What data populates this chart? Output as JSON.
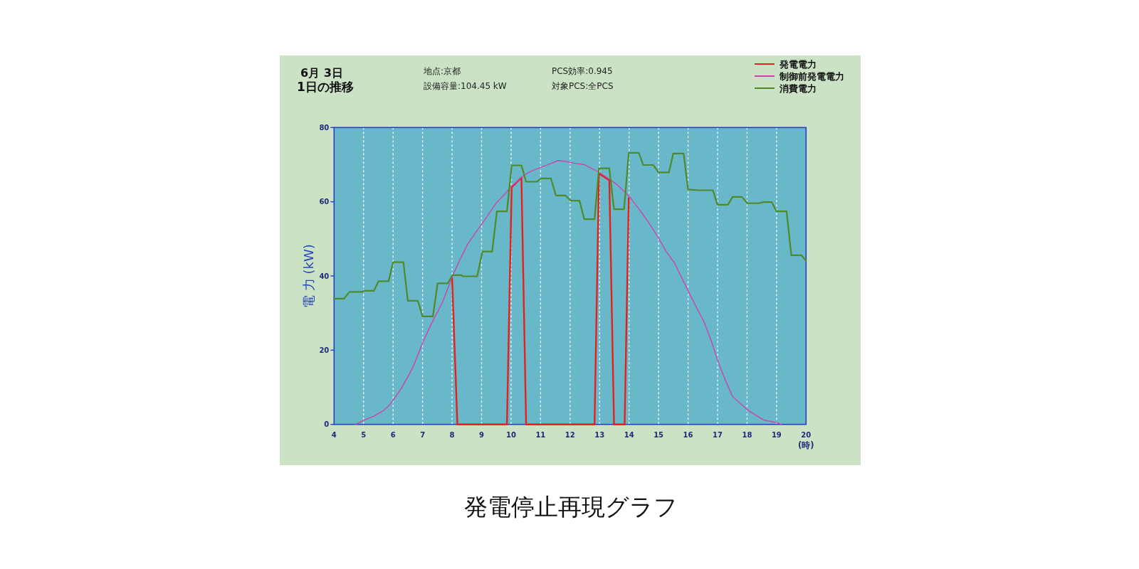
{
  "chart_data": {
    "type": "line",
    "title": "6月 3日",
    "subtitle": "1日の推移",
    "xlabel": "(時)",
    "ylabel": "電 力 (kW)",
    "annotations": [
      "地点:京都",
      "設備容量:104.45 kW",
      "PCS効率:0.945",
      "対象PCS:全PCS",
      "発電停止再現グラフ"
    ],
    "xlim": [
      4,
      20
    ],
    "xticks": [
      4,
      5,
      6,
      7,
      8,
      9,
      10,
      11,
      12,
      13,
      14,
      15,
      16,
      17,
      18,
      19,
      20
    ],
    "ylim": [
      0,
      80
    ],
    "yticks": [
      0,
      20,
      40,
      60,
      80
    ],
    "grid": "x",
    "legend": "top right",
    "line_style": "solid",
    "series": [
      {
        "name": "発電電力",
        "color": "#e3221c",
        "x": [
          8.0,
          8.18,
          9.86,
          10.02,
          10.35,
          10.51,
          12.83,
          12.98,
          13.33,
          13.49,
          13.85,
          13.99
        ],
        "values": [
          39.5,
          0,
          0,
          63.9,
          66.5,
          0,
          0,
          67.6,
          65.8,
          0,
          0,
          61.0
        ]
      },
      {
        "name": "制御前発電電力",
        "color": "#cc44b0",
        "x": [
          4.74,
          5.02,
          5.35,
          5.67,
          5.87,
          6.07,
          6.27,
          6.52,
          6.72,
          7.0,
          7.28,
          7.69,
          8.01,
          8.25,
          8.53,
          8.81,
          9.06,
          9.26,
          9.5,
          9.78,
          10.02,
          10.35,
          10.55,
          10.79,
          11.11,
          11.35,
          11.6,
          11.88,
          12.0,
          12.48,
          12.8,
          13.05,
          13.33,
          13.61,
          13.85,
          14.05,
          14.33,
          14.61,
          14.98,
          15.26,
          15.54,
          15.78,
          16.06,
          16.3,
          16.55,
          16.79,
          17.03,
          17.27,
          17.51,
          17.75,
          18.03,
          18.27,
          18.56,
          18.8,
          19.0,
          19.16
        ],
        "values": [
          0,
          1.2,
          2.2,
          3.7,
          5.1,
          7.3,
          9.6,
          13.1,
          16.3,
          22.0,
          26.8,
          33.2,
          39.9,
          44.1,
          48.6,
          51.8,
          54.6,
          56.9,
          59.7,
          62.0,
          64.2,
          66.5,
          67.7,
          68.6,
          69.6,
          70.3,
          71.1,
          70.8,
          70.6,
          70.0,
          68.7,
          67.6,
          66.1,
          64.5,
          62.7,
          61.0,
          58.1,
          55.0,
          50.5,
          46.6,
          43.5,
          39.6,
          35.1,
          31.3,
          27.5,
          22.4,
          16.6,
          11.8,
          7.5,
          5.8,
          3.8,
          2.6,
          1.2,
          0.8,
          0.5,
          0
        ]
      },
      {
        "name": "消費電力",
        "color": "#4f8a2a",
        "x": [
          4,
          4.34,
          4.52,
          4.94,
          5.02,
          5.35,
          5.51,
          5.85,
          6.0,
          6.35,
          6.5,
          6.84,
          7.0,
          7.35,
          7.51,
          7.85,
          8.01,
          8.33,
          8.37,
          8.85,
          9.03,
          9.36,
          9.52,
          9.86,
          10.02,
          10.35,
          10.51,
          10.87,
          11.03,
          11.35,
          11.52,
          11.84,
          12.02,
          12.32,
          12.48,
          12.83,
          12.98,
          13.33,
          13.49,
          13.83,
          13.99,
          14.33,
          14.48,
          14.82,
          15.0,
          15.35,
          15.5,
          15.85,
          16.0,
          16.34,
          16.84,
          17.0,
          17.35,
          17.51,
          17.83,
          18.01,
          18.4,
          18.56,
          18.84,
          19.0,
          19.34,
          19.5,
          19.84,
          20.0
        ],
        "values": [
          33.9,
          33.9,
          35.7,
          35.7,
          36.0,
          36.0,
          38.6,
          38.6,
          43.7,
          43.7,
          33.3,
          33.3,
          29.1,
          29.1,
          38.0,
          38.0,
          40.2,
          40.2,
          39.9,
          39.9,
          46.6,
          46.6,
          57.4,
          57.4,
          69.8,
          69.8,
          65.4,
          65.4,
          66.3,
          66.3,
          61.7,
          61.7,
          60.3,
          60.3,
          55.3,
          55.3,
          69.0,
          69.0,
          58.0,
          58.0,
          73.2,
          73.2,
          69.9,
          69.9,
          67.9,
          67.9,
          73.0,
          73.0,
          63.3,
          63.1,
          63.1,
          59.2,
          59.2,
          61.3,
          61.3,
          59.6,
          59.6,
          59.9,
          59.9,
          57.4,
          57.4,
          45.6,
          45.6,
          44.1
        ]
      }
    ]
  }
}
